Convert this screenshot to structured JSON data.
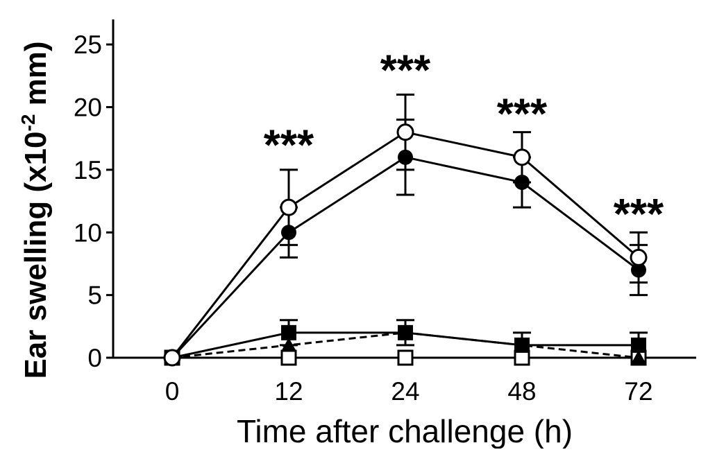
{
  "chart_data": {
    "type": "line",
    "xlabel": "Time after challenge (h)",
    "ylabel": {
      "prefix": "Ear swelling (x10",
      "sup": "-2",
      "suffix": " mm)"
    },
    "categories": [
      "0",
      "12",
      "24",
      "48",
      "72"
    ],
    "ylim": [
      0,
      27
    ],
    "yticks": [
      0,
      5,
      10,
      15,
      20,
      25
    ],
    "grid": false,
    "series": [
      {
        "marker": "circle-open",
        "line": "solid",
        "values": [
          0,
          12,
          18,
          16,
          8
        ],
        "err": [
          0,
          3,
          3,
          2,
          2
        ]
      },
      {
        "marker": "circle-filled",
        "line": "solid",
        "values": [
          0,
          10,
          16,
          14,
          7
        ],
        "err": [
          0,
          2,
          3,
          2,
          2
        ]
      },
      {
        "marker": "square-filled",
        "line": "solid",
        "values": [
          0,
          2,
          2,
          1,
          1
        ],
        "err": [
          0,
          1,
          1,
          1,
          1
        ]
      },
      {
        "marker": "triangle-filled",
        "line": "dashed",
        "values": [
          0,
          1,
          2,
          1,
          0
        ],
        "err": [
          0,
          0,
          0,
          0,
          0
        ]
      },
      {
        "marker": "square-open",
        "line": "none",
        "values": [
          0,
          0,
          0,
          0,
          0
        ],
        "err": [
          0,
          0,
          0,
          0,
          0
        ]
      }
    ],
    "annotations": [
      {
        "x": "12",
        "y": 17,
        "text": "***"
      },
      {
        "x": "24",
        "y": 23,
        "text": "***"
      },
      {
        "x": "48",
        "y": 19.5,
        "text": "***"
      },
      {
        "x": "72",
        "y": 11.5,
        "text": "***"
      }
    ]
  }
}
